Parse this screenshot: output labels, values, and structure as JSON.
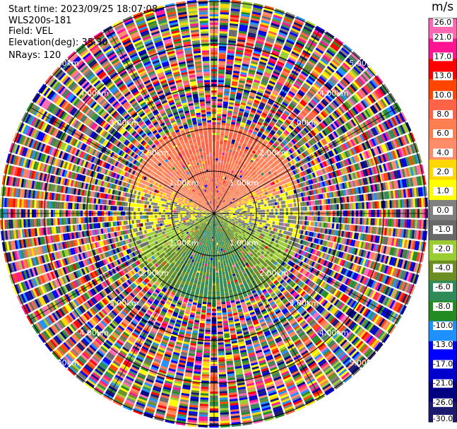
{
  "header": {
    "start_time": "Start time: 2023/09/25 18:07:08",
    "instrument": "WLS200s-181",
    "field": "Field: VEL",
    "elevation": "Elevation(deg): 35.30",
    "nrays": "NRays: 120"
  },
  "colorbar": {
    "unit": "m/s",
    "colors": [
      "#1a1a6e",
      "#000080",
      "#0000cd",
      "#0000ff",
      "#1e90ff",
      "#228b22",
      "#2e8b57",
      "#6b8e23",
      "#9acd32",
      "#696969",
      "#808080",
      "#ffff00",
      "#ffd700",
      "#ff8c69",
      "#ff7f50",
      "#ff6347",
      "#ff4500",
      "#ff0000",
      "#ff1493",
      "#ff69b4"
    ],
    "tick_labels": [
      "-30.0",
      "-26.0",
      "-21.0",
      "-17.0",
      "-13.0",
      "-10.0",
      "-8.0",
      "-6.0",
      "-4.0",
      "-2.0",
      "-1.0",
      "0.0",
      "1.0",
      "2.0",
      "4.0",
      "6.0",
      "8.0",
      "10.0",
      "13.0",
      "17.0",
      "21.0",
      "26.0"
    ]
  },
  "range_rings": {
    "labels": [
      "1.00km",
      "2.00km",
      "3.00km",
      "4.00km",
      "5.00km"
    ]
  },
  "chart_data": {
    "type": "heatmap",
    "subtype": "ppi_radial_velocity",
    "field": "VEL",
    "units": "m/s",
    "n_rays": 120,
    "range_rings_km": [
      1,
      2,
      3,
      4,
      5
    ],
    "value_range": [
      -30,
      26
    ],
    "summary": {
      "near_field_north": "positive velocities 2-8 m/s (yellow to orange)",
      "near_field_south": "negative velocities -2 to -8 m/s (green to blue)",
      "near_field_east_west": "near 0 m/s (gray)",
      "far_field": "noise, full color range"
    }
  }
}
